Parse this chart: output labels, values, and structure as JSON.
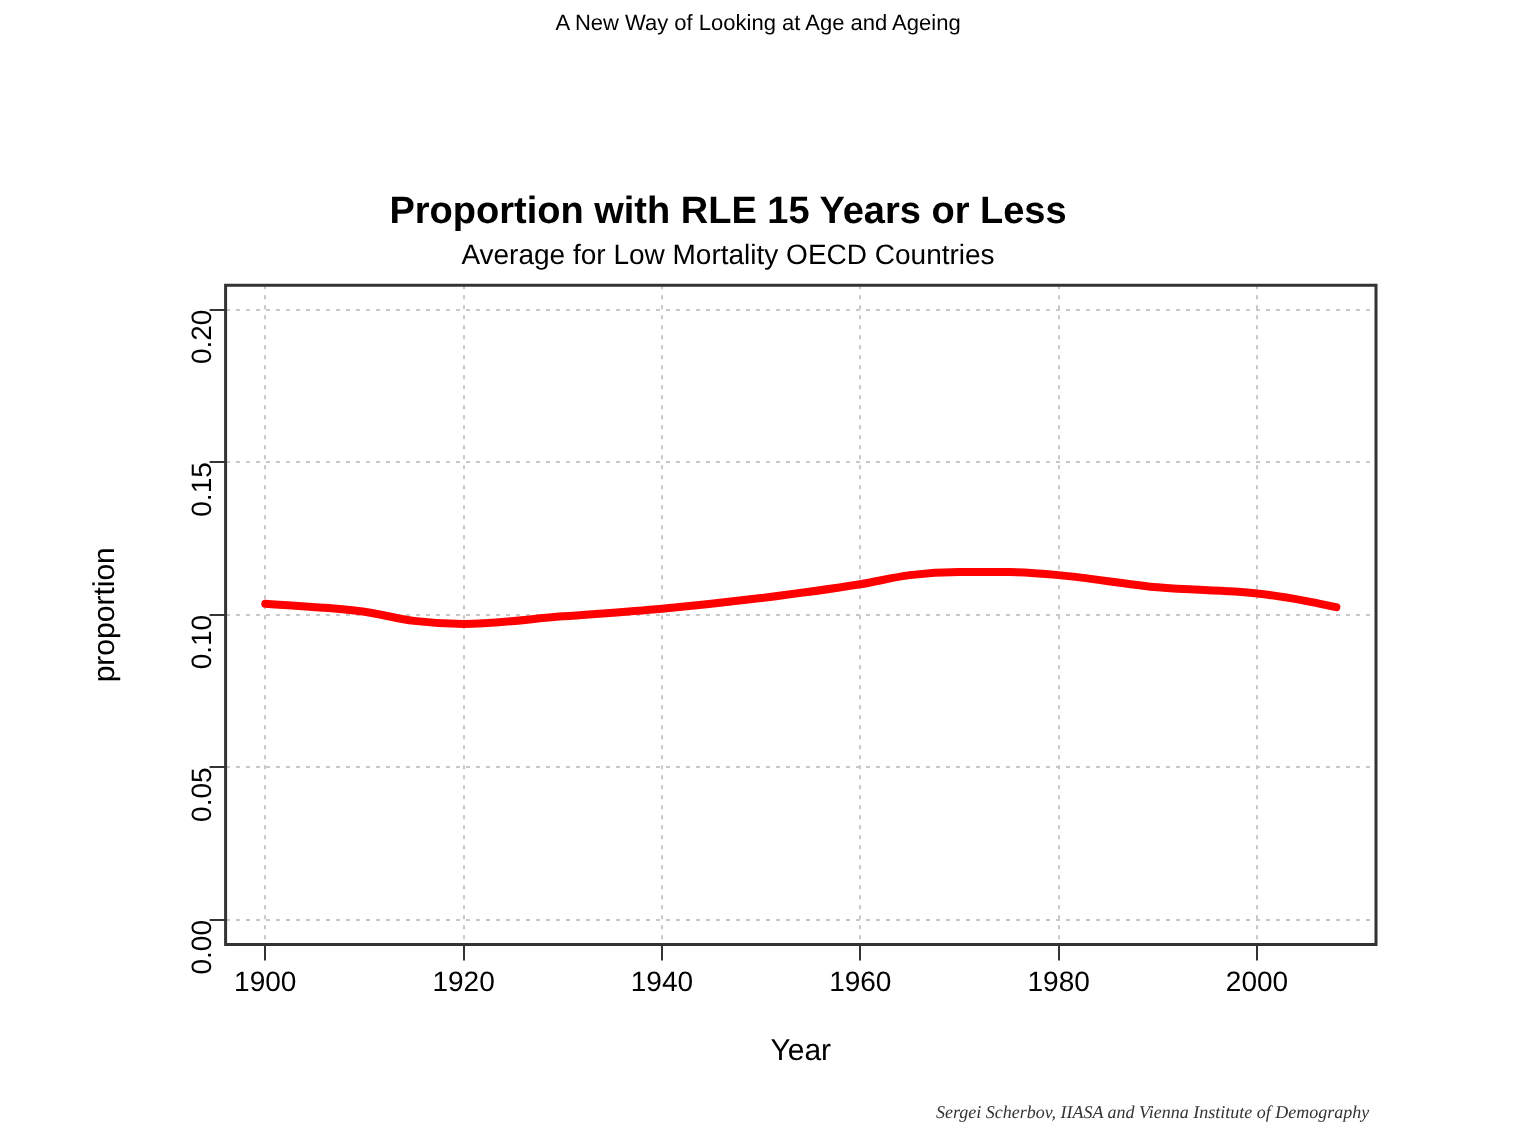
{
  "chart_data": {
    "type": "line",
    "title": "Proportion with RLE 15 Years or Less",
    "subtitle": "Average for Low Mortality OECD Countries",
    "xlabel": "Year",
    "ylabel": "proportion",
    "annotations": [
      "A New Way of Looking at Age and Ageing",
      "Sergei Scherbov, IIASA and Vienna Institute of Demography"
    ],
    "x": [
      1900,
      1910,
      1915,
      1920,
      1930,
      1940,
      1950,
      1960,
      1965,
      1970,
      1975,
      1980,
      1990,
      2000,
      2005,
      2008
    ],
    "series": [
      {
        "color": "#ff0000",
        "values": [
          0.1036,
          0.101,
          0.098,
          0.097,
          0.0995,
          0.102,
          0.1055,
          0.11,
          0.113,
          0.114,
          0.114,
          0.113,
          0.109,
          0.107,
          0.1045,
          0.1025
        ]
      }
    ],
    "xlim": [
      1896,
      2012
    ],
    "xticks": [
      1900,
      1920,
      1940,
      1960,
      1980,
      2000
    ],
    "ylim": [
      -0.008,
      0.208
    ],
    "yticks": [
      {
        "value": 0,
        "label": "0.00"
      },
      {
        "value": 0.05,
        "label": "0.05"
      },
      {
        "value": 0.1,
        "label": "0.10"
      },
      {
        "value": 0.15,
        "label": "0.15"
      },
      {
        "value": 0.2,
        "label": "0.20"
      }
    ],
    "grid": true,
    "legend": false,
    "marker": "none",
    "line_style": "solid"
  }
}
